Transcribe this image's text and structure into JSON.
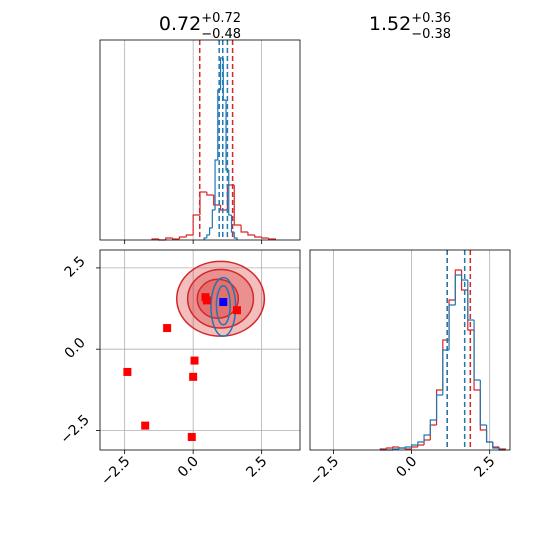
{
  "chart_data": {
    "type": "corner",
    "panels": [
      {
        "type": "histogram",
        "title": {
          "value": "0.72",
          "plus": "+0.72",
          "minus": "−0.48"
        },
        "xlim": [
          -3.4,
          3.9
        ],
        "ylim": [
          0,
          200
        ],
        "grid": true,
        "xtick_labels": false,
        "xticks": [
          -2.5,
          0,
          2.5
        ],
        "series": [
          {
            "color": "#d62728",
            "bins": [
              -1.5,
              -1.25,
              -1.0,
              -0.75,
              -0.5,
              -0.25,
              0.0,
              0.25,
              0.5,
              0.75,
              1.0,
              1.25,
              1.5,
              1.75,
              2.0,
              2.25,
              2.5,
              2.75,
              3.0
            ],
            "values": [
              1,
              0,
              2,
              1,
              3,
              5,
              25,
              48,
              45,
              35,
              30,
              55,
              15,
              8,
              5,
              3,
              2,
              1
            ],
            "quantiles": [
              0.24,
              1.44
            ]
          },
          {
            "color": "#1f77b4",
            "bins": [
              0.4,
              0.5,
              0.6,
              0.7,
              0.8,
              0.9,
              1.0,
              1.1,
              1.2,
              1.3,
              1.4,
              1.5,
              1.6
            ],
            "values": [
              2,
              5,
              12,
              30,
              80,
              150,
              182,
              140,
              70,
              25,
              8,
              2
            ],
            "quantiles": [
              0.95,
              1.08,
              1.25
            ]
          }
        ]
      },
      {
        "type": "scatter2d",
        "xlim": [
          -3.4,
          3.9
        ],
        "ylim": [
          -3.1,
          3.05
        ],
        "grid": true,
        "xticks": [
          {
            "value": -2.5,
            "label": "−2.5"
          },
          {
            "value": 0,
            "label": "0.0"
          },
          2.5
        ],
        "yticks": [
          {
            "value": -2.5,
            "label": "−2.5"
          },
          {
            "value": 0,
            "label": "0.0"
          },
          2.5
        ],
        "contours": [
          {
            "color": "#d62728",
            "fill": "#d62728",
            "levels": [
              {
                "cx": 1.0,
                "cy": 1.55,
                "rx": 1.6,
                "ry": 1.15
              },
              {
                "cx": 1.0,
                "cy": 1.55,
                "rx": 1.2,
                "ry": 0.9
              },
              {
                "cx": 0.9,
                "cy": 1.55,
                "rx": 0.75,
                "ry": 0.6
              }
            ]
          },
          {
            "color": "#1f77b4",
            "fill": "none",
            "levels": [
              {
                "cx": 1.1,
                "cy": 1.3,
                "rx": 0.45,
                "ry": 0.9
              },
              {
                "cx": 1.1,
                "cy": 1.35,
                "rx": 0.25,
                "ry": 0.6
              }
            ]
          }
        ],
        "series": [
          {
            "color": "#ff0000",
            "x": [
              -2.4,
              -1.75,
              -0.95,
              0.05,
              0.0,
              -0.05,
              0.45,
              1.6,
              0.5
            ],
            "y": [
              -0.7,
              -2.35,
              0.65,
              -0.35,
              -0.85,
              -2.7,
              1.6,
              1.2,
              1.5
            ]
          },
          {
            "color": "#0000ff",
            "x": [
              1.1
            ],
            "y": [
              1.45
            ]
          }
        ]
      },
      {
        "type": "histogram",
        "title": {
          "value": "1.52",
          "plus": "+0.36",
          "minus": "−0.38"
        },
        "xlim": [
          -3.25,
          3.15
        ],
        "ylim": [
          0,
          200
        ],
        "grid": true,
        "xtick_labels": true,
        "xticks": [
          {
            "value": -2.5,
            "label": "−2.5"
          },
          {
            "value": 0,
            "label": "0.0"
          },
          2.5
        ],
        "series": [
          {
            "color": "#d62728",
            "bins": [
              -1.0,
              -0.8,
              -0.6,
              -0.4,
              -0.2,
              0.0,
              0.2,
              0.4,
              0.6,
              0.8,
              1.0,
              1.2,
              1.4,
              1.6,
              1.8,
              2.0,
              2.2,
              2.4,
              2.6,
              2.8,
              3.0
            ],
            "values": [
              1,
              2,
              3,
              2,
              1,
              3,
              5,
              10,
              25,
              60,
              110,
              150,
              180,
              160,
              120,
              60,
              20,
              8,
              3,
              1
            ],
            "quantiles": [
              1.14,
              1.88
            ]
          },
          {
            "color": "#1f77b4",
            "bins": [
              -1.0,
              -0.8,
              -0.6,
              -0.4,
              -0.2,
              0.0,
              0.2,
              0.4,
              0.6,
              0.8,
              1.0,
              1.2,
              1.4,
              1.6,
              1.8,
              2.0,
              2.2,
              2.4,
              2.6,
              2.8,
              3.0
            ],
            "values": [
              0,
              0,
              1,
              2,
              3,
              5,
              8,
              15,
              30,
              55,
              100,
              145,
              175,
              170,
              130,
              70,
              25,
              8,
              2,
              0
            ],
            "quantiles": [
              1.14,
              1.7
            ]
          }
        ]
      }
    ]
  }
}
